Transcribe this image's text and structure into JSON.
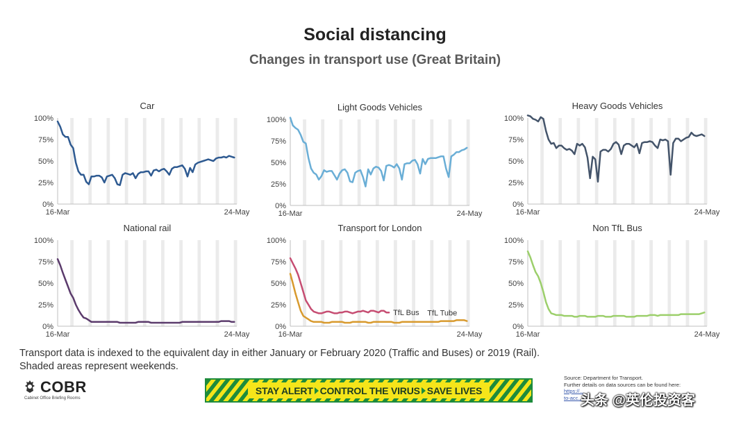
{
  "header": {
    "title": "Social distancing",
    "subtitle": "Changes in transport use (Great Britain)"
  },
  "footnote": {
    "line1": "Transport data is indexed to the equivalent day in either January or February 2020 (Traffic and Buses) or 2019 (Rail).",
    "line2": "Shaded areas represent weekends."
  },
  "logo": {
    "name": "COBR",
    "sub": "Cabinet Office Briefing Rooms"
  },
  "banner": {
    "part1": "STAY ALERT",
    "part2": "CONTROL THE VIRUS",
    "part3": "SAVE LIVES"
  },
  "source": {
    "line1": "Source: Department for Transport.",
    "line2": "Further details on data sources can be found here:",
    "line3": "https://...",
    "line4": "to-acc..."
  },
  "watermark": "头条 @英伦投资客",
  "chart_data": [
    {
      "type": "line",
      "title": "Car",
      "color": "#2e5a91",
      "x_start": "16-Mar",
      "x_end": "24-May",
      "xtick_labels": [
        "16-Mar",
        "24-May"
      ],
      "ytick_labels": [
        "0%",
        "25%",
        "50%",
        "75%",
        "100%"
      ],
      "ylim": [
        0,
        100
      ],
      "series": [
        {
          "values": [
            96,
            90,
            81,
            78,
            78,
            69,
            65,
            48,
            38,
            34,
            34,
            26,
            23,
            32,
            32,
            33,
            33,
            31,
            25,
            32,
            33,
            34,
            30,
            23,
            22,
            34,
            36,
            35,
            34,
            36,
            30,
            35,
            37,
            37,
            38,
            38,
            33,
            39,
            40,
            38,
            40,
            41,
            38,
            34,
            41,
            43,
            43,
            44,
            45,
            41,
            32,
            42,
            37,
            46,
            48,
            49,
            50,
            51,
            52,
            51,
            50,
            53,
            54,
            54,
            55,
            54,
            56,
            55,
            54
          ]
        }
      ]
    },
    {
      "type": "line",
      "title": "Light Goods Vehicles",
      "color": "#6aaed6",
      "x_start": "16-Mar",
      "x_end": "24-May",
      "xtick_labels": [
        "16-Mar",
        "24-May"
      ],
      "ytick_labels": [
        "0%",
        "25%",
        "50%",
        "75%",
        "100%"
      ],
      "ylim": [
        0,
        100
      ],
      "series": [
        {
          "values": [
            102,
            93,
            90,
            88,
            82,
            74,
            72,
            55,
            43,
            38,
            36,
            30,
            34,
            41,
            39,
            40,
            40,
            35,
            30,
            37,
            41,
            42,
            38,
            28,
            27,
            38,
            40,
            41,
            33,
            22,
            42,
            36,
            43,
            45,
            44,
            40,
            29,
            46,
            47,
            46,
            44,
            48,
            43,
            30,
            48,
            49,
            49,
            52,
            53,
            48,
            37,
            54,
            48,
            54,
            55,
            55,
            55,
            56,
            57,
            57,
            43,
            33,
            57,
            59,
            62,
            62,
            64,
            65,
            67
          ]
        }
      ]
    },
    {
      "type": "line",
      "title": "Heavy Goods Vehicles",
      "color": "#44546a",
      "x_start": "16-Mar",
      "x_end": "24-May",
      "xtick_labels": [
        "16-Mar",
        "24-May"
      ],
      "ytick_labels": [
        "0%",
        "25%",
        "50%",
        "75%",
        "100%"
      ],
      "ylim": [
        0,
        100
      ],
      "series": [
        {
          "values": [
            103,
            102,
            99,
            98,
            96,
            101,
            99,
            85,
            75,
            70,
            71,
            65,
            68,
            68,
            65,
            63,
            64,
            62,
            58,
            70,
            68,
            70,
            66,
            54,
            30,
            55,
            52,
            26,
            61,
            63,
            63,
            61,
            64,
            70,
            72,
            69,
            58,
            68,
            70,
            70,
            68,
            66,
            70,
            59,
            71,
            72,
            72,
            73,
            72,
            68,
            65,
            75,
            74,
            75,
            73,
            34,
            71,
            76,
            76,
            73,
            75,
            77,
            78,
            83,
            80,
            79,
            80,
            81,
            79
          ]
        }
      ]
    },
    {
      "type": "line",
      "title": "National rail",
      "color": "#5b3b6c",
      "x_start": "16-Mar",
      "x_end": "24-May",
      "xtick_labels": [
        "16-Mar",
        "24-May"
      ],
      "ytick_labels": [
        "0%",
        "25%",
        "50%",
        "75%",
        "100%"
      ],
      "ylim": [
        0,
        100
      ],
      "series": [
        {
          "values": [
            78,
            71,
            62,
            54,
            46,
            38,
            33,
            25,
            19,
            14,
            10,
            9,
            7,
            5,
            5,
            5,
            5,
            5,
            5,
            5,
            5,
            5,
            5,
            5,
            4,
            4,
            4,
            4,
            4,
            4,
            4,
            5,
            5,
            5,
            5,
            5,
            4,
            4,
            4,
            4,
            4,
            4,
            4,
            4,
            4,
            4,
            4,
            4,
            5,
            5,
            5,
            5,
            5,
            5,
            5,
            5,
            5,
            5,
            5,
            5,
            5,
            5,
            5,
            6,
            6,
            6,
            6,
            5,
            5
          ]
        }
      ]
    },
    {
      "type": "line",
      "title": "Transport for London",
      "x_start": "16-Mar",
      "x_end": "24-May",
      "xtick_labels": [
        "16-Mar",
        "24-May"
      ],
      "ytick_labels": [
        "0%",
        "25%",
        "50%",
        "75%",
        "100%"
      ],
      "ylim": [
        0,
        100
      ],
      "series": [
        {
          "name": "TfL Bus",
          "color": "#c64d72",
          "values": [
            79,
            73,
            67,
            60,
            50,
            40,
            30,
            25,
            20,
            17,
            16,
            15,
            15,
            16,
            17,
            17,
            16,
            15,
            15,
            16,
            16,
            17,
            17,
            16,
            15,
            16,
            17,
            17,
            18,
            17,
            16,
            18,
            18,
            17,
            16,
            18,
            18,
            16,
            16
          ]
        },
        {
          "name": "TfL Tube",
          "color": "#d89a2e",
          "values": [
            61,
            50,
            38,
            28,
            18,
            12,
            10,
            8,
            6,
            5,
            5,
            5,
            5,
            4,
            4,
            4,
            5,
            5,
            5,
            5,
            5,
            4,
            4,
            4,
            5,
            5,
            5,
            5,
            5,
            5,
            4,
            4,
            5,
            5,
            5,
            5,
            5,
            5,
            5,
            5,
            4,
            4,
            4,
            5,
            5,
            5,
            5,
            5,
            5,
            5,
            5,
            5,
            5,
            5,
            5,
            5,
            5,
            5,
            6,
            6,
            6,
            6,
            6,
            6,
            7,
            7,
            7,
            7,
            6
          ]
        }
      ]
    },
    {
      "type": "line",
      "title": "Non TfL Bus",
      "color": "#9ccf6b",
      "x_start": "16-Mar",
      "x_end": "24-May",
      "xtick_labels": [
        "16-Mar",
        "24-May"
      ],
      "ytick_labels": [
        "0%",
        "25%",
        "50%",
        "75%",
        "100%"
      ],
      "ylim": [
        0,
        100
      ],
      "series": [
        {
          "values": [
            87,
            80,
            71,
            63,
            58,
            50,
            40,
            28,
            20,
            15,
            14,
            13,
            13,
            13,
            12,
            12,
            12,
            12,
            11,
            11,
            12,
            12,
            12,
            11,
            11,
            11,
            11,
            12,
            12,
            12,
            11,
            11,
            11,
            12,
            12,
            12,
            12,
            12,
            11,
            11,
            11,
            11,
            12,
            12,
            12,
            12,
            12,
            13,
            13,
            13,
            12,
            13,
            13,
            13,
            13,
            13,
            13,
            13,
            13,
            14,
            14,
            14,
            14,
            14,
            14,
            14,
            14,
            15,
            16
          ]
        }
      ]
    }
  ]
}
